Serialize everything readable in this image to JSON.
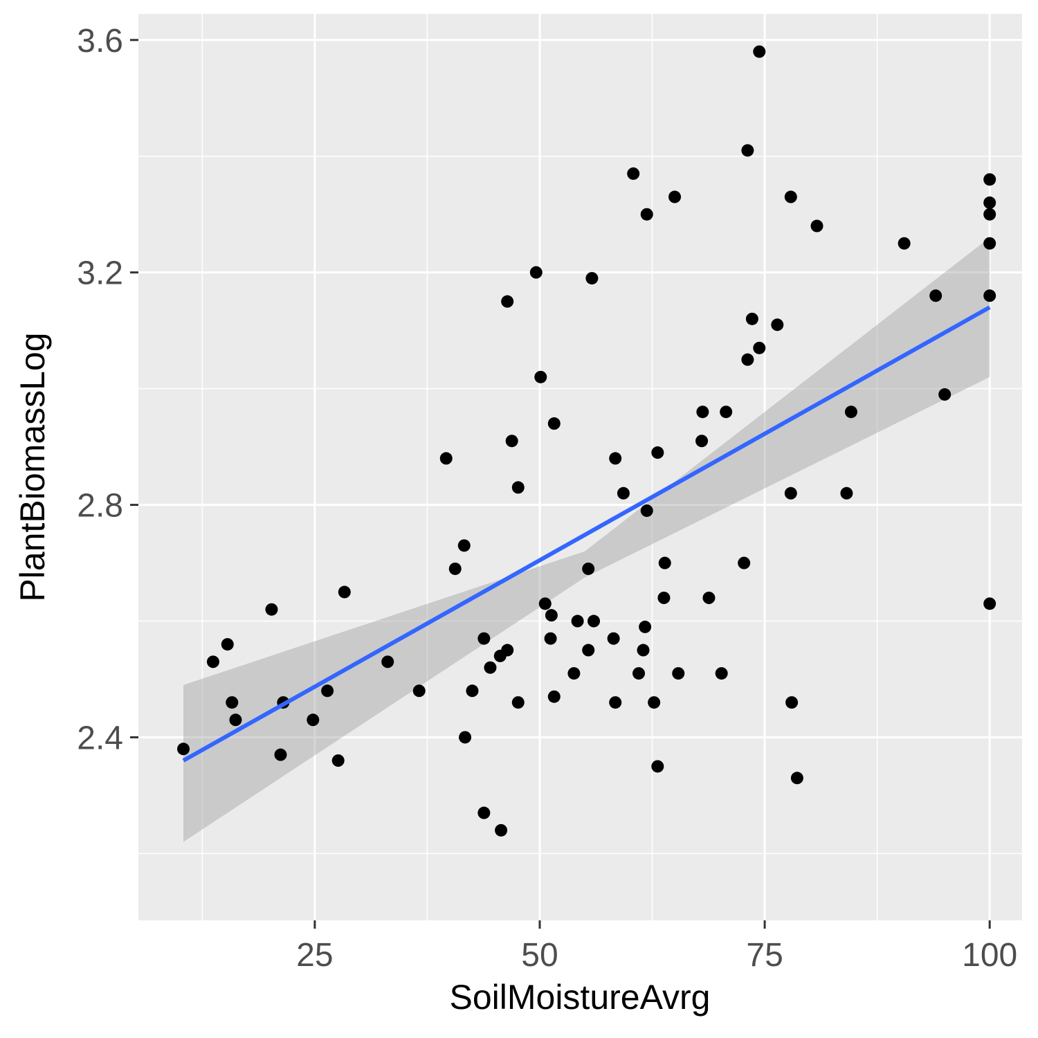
{
  "chart_data": {
    "type": "scatter",
    "title": "",
    "xlabel": "SoilMoistureAvrg",
    "ylabel": "PlantBiomassLog",
    "xlim": [
      5.4,
      103.6
    ],
    "ylim": [
      2.085,
      3.645
    ],
    "x_ticks": [
      25,
      50,
      75,
      100
    ],
    "x_minor_ticks": [
      12.5,
      37.5,
      62.5,
      87.5
    ],
    "y_ticks": [
      2.4,
      2.8,
      3.2,
      3.6
    ],
    "y_minor_ticks": [
      2.2,
      2.6,
      3.0,
      3.4
    ],
    "x_tick_labels": [
      "25",
      "50",
      "75",
      "100"
    ],
    "y_tick_labels": [
      "2.4",
      "2.8",
      "3.2",
      "3.6"
    ],
    "grid": true,
    "points": [
      {
        "x": 10.4,
        "y": 2.38
      },
      {
        "x": 13.7,
        "y": 2.53
      },
      {
        "x": 15.3,
        "y": 2.56
      },
      {
        "x": 15.8,
        "y": 2.46
      },
      {
        "x": 16.2,
        "y": 2.43
      },
      {
        "x": 20.2,
        "y": 2.62
      },
      {
        "x": 21.2,
        "y": 2.37
      },
      {
        "x": 21.5,
        "y": 2.46
      },
      {
        "x": 24.8,
        "y": 2.43
      },
      {
        "x": 26.4,
        "y": 2.48
      },
      {
        "x": 27.6,
        "y": 2.36
      },
      {
        "x": 28.3,
        "y": 2.65
      },
      {
        "x": 33.1,
        "y": 2.53
      },
      {
        "x": 36.6,
        "y": 2.48
      },
      {
        "x": 39.6,
        "y": 2.88
      },
      {
        "x": 40.6,
        "y": 2.69
      },
      {
        "x": 41.6,
        "y": 2.73
      },
      {
        "x": 41.7,
        "y": 2.4
      },
      {
        "x": 42.5,
        "y": 2.48
      },
      {
        "x": 43.8,
        "y": 2.57
      },
      {
        "x": 43.8,
        "y": 2.27
      },
      {
        "x": 44.5,
        "y": 2.52
      },
      {
        "x": 45.6,
        "y": 2.54
      },
      {
        "x": 45.7,
        "y": 2.24
      },
      {
        "x": 46.4,
        "y": 2.55
      },
      {
        "x": 46.4,
        "y": 3.15
      },
      {
        "x": 46.9,
        "y": 2.91
      },
      {
        "x": 47.6,
        "y": 2.83
      },
      {
        "x": 47.6,
        "y": 2.46
      },
      {
        "x": 49.6,
        "y": 3.2
      },
      {
        "x": 50.1,
        "y": 3.02
      },
      {
        "x": 50.6,
        "y": 2.63
      },
      {
        "x": 51.2,
        "y": 2.57
      },
      {
        "x": 51.3,
        "y": 2.61
      },
      {
        "x": 51.6,
        "y": 2.94
      },
      {
        "x": 51.6,
        "y": 2.47
      },
      {
        "x": 53.8,
        "y": 2.51
      },
      {
        "x": 54.2,
        "y": 2.6
      },
      {
        "x": 55.4,
        "y": 2.69
      },
      {
        "x": 55.4,
        "y": 2.55
      },
      {
        "x": 55.8,
        "y": 3.19
      },
      {
        "x": 56.0,
        "y": 2.6
      },
      {
        "x": 58.2,
        "y": 2.57
      },
      {
        "x": 58.4,
        "y": 2.88
      },
      {
        "x": 58.4,
        "y": 2.46
      },
      {
        "x": 59.3,
        "y": 2.82
      },
      {
        "x": 60.4,
        "y": 3.37
      },
      {
        "x": 61.0,
        "y": 2.51
      },
      {
        "x": 61.5,
        "y": 2.55
      },
      {
        "x": 61.7,
        "y": 2.59
      },
      {
        "x": 61.9,
        "y": 2.79
      },
      {
        "x": 61.9,
        "y": 3.3
      },
      {
        "x": 62.7,
        "y": 2.46
      },
      {
        "x": 63.1,
        "y": 2.89
      },
      {
        "x": 63.1,
        "y": 2.35
      },
      {
        "x": 63.8,
        "y": 2.64
      },
      {
        "x": 63.9,
        "y": 2.7
      },
      {
        "x": 65.0,
        "y": 3.33
      },
      {
        "x": 65.4,
        "y": 2.51
      },
      {
        "x": 68.0,
        "y": 2.91
      },
      {
        "x": 68.1,
        "y": 2.96
      },
      {
        "x": 68.8,
        "y": 2.64
      },
      {
        "x": 70.2,
        "y": 2.51
      },
      {
        "x": 70.7,
        "y": 2.96
      },
      {
        "x": 72.7,
        "y": 2.7
      },
      {
        "x": 73.1,
        "y": 3.05
      },
      {
        "x": 73.1,
        "y": 3.41
      },
      {
        "x": 73.6,
        "y": 3.12
      },
      {
        "x": 74.4,
        "y": 3.07
      },
      {
        "x": 74.4,
        "y": 3.58
      },
      {
        "x": 76.4,
        "y": 3.11
      },
      {
        "x": 77.9,
        "y": 3.33
      },
      {
        "x": 77.9,
        "y": 2.82
      },
      {
        "x": 78.0,
        "y": 2.46
      },
      {
        "x": 78.6,
        "y": 2.33
      },
      {
        "x": 80.8,
        "y": 3.28
      },
      {
        "x": 84.1,
        "y": 2.82
      },
      {
        "x": 84.6,
        "y": 2.96
      },
      {
        "x": 90.5,
        "y": 3.25
      },
      {
        "x": 94.0,
        "y": 3.16
      },
      {
        "x": 95.0,
        "y": 2.99
      },
      {
        "x": 100.0,
        "y": 3.36
      },
      {
        "x": 100.0,
        "y": 3.32
      },
      {
        "x": 100.0,
        "y": 3.3
      },
      {
        "x": 100.0,
        "y": 3.25
      },
      {
        "x": 100.0,
        "y": 3.16
      },
      {
        "x": 100.0,
        "y": 2.63
      }
    ],
    "series": [
      {
        "type": "line",
        "x": [
          10.4,
          100.0
        ],
        "y": [
          2.36,
          3.14
        ],
        "color": "#3366ff"
      },
      {
        "type": "ribbon",
        "x": [
          10.4,
          55.0,
          100.0
        ],
        "ymin": [
          2.22,
          2.675,
          3.02
        ],
        "ymax": [
          2.49,
          2.72,
          3.26
        ],
        "color": "#999999"
      }
    ],
    "colors": {
      "panel_bg": "#ebebeb",
      "grid": "#ffffff",
      "point": "#000000",
      "line": "#3366ff",
      "ribbon": "#999999"
    }
  }
}
